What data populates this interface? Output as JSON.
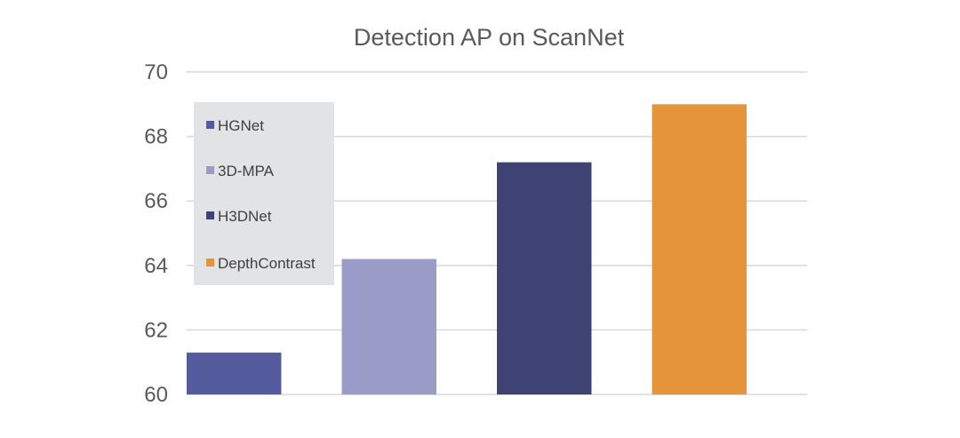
{
  "chart_data": {
    "type": "bar",
    "title": "Detection AP on ScanNet",
    "xlabel": "",
    "ylabel": "",
    "categories": [
      "HGNet",
      "3D-MPA",
      "H3DNet",
      "DepthContrast"
    ],
    "values": [
      61.3,
      64.2,
      67.2,
      69.0
    ],
    "colors": [
      "#545c9e",
      "#9b9bc8",
      "#3f4373",
      "#e5943a"
    ],
    "ylim": [
      60,
      70
    ],
    "yticks": [
      60,
      62,
      64,
      66,
      68,
      70
    ],
    "grid": true,
    "legend_position": "top-left"
  }
}
